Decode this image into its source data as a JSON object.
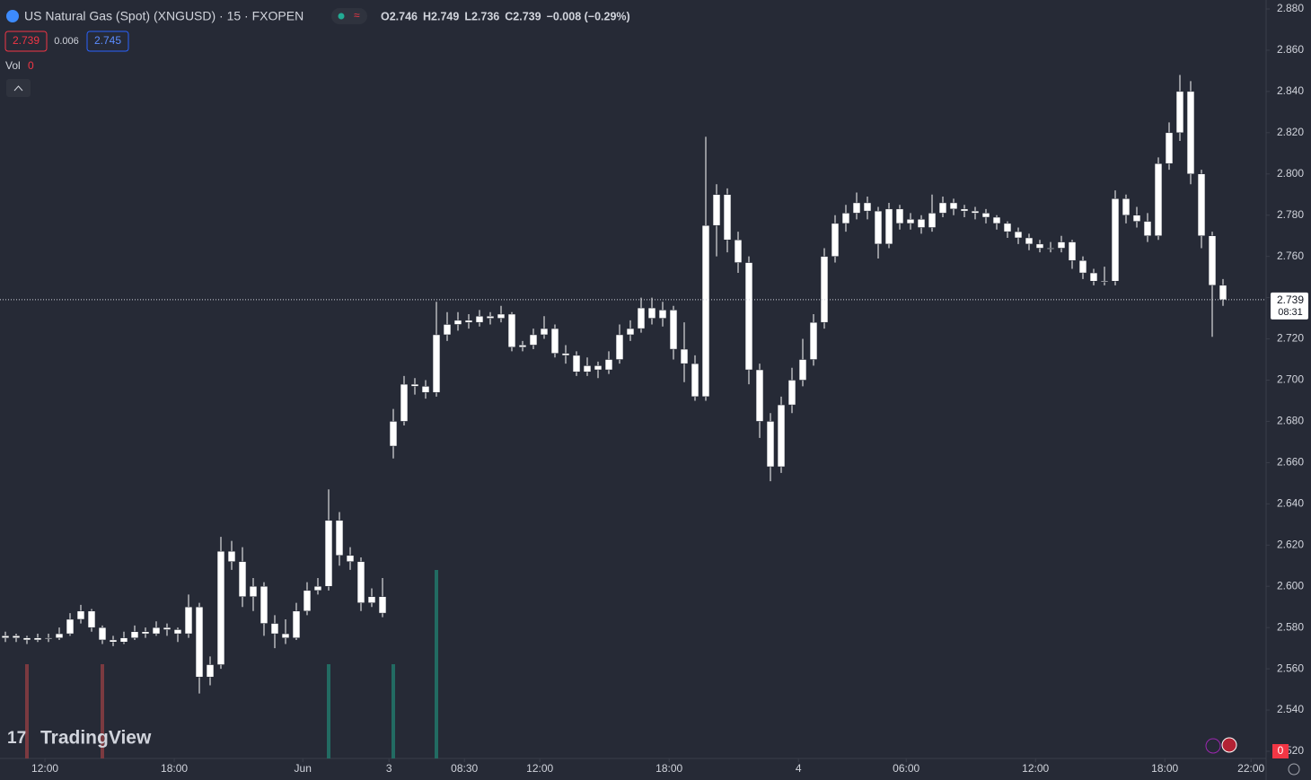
{
  "chart_data": {
    "type": "candlestick",
    "title": "US Natural Gas (Spot) (XNGUSD) · 15 · FXOPEN",
    "header_values": [
      "O2.746",
      "H2.749",
      "L2.736",
      "C2.739",
      "−0.008 (−0.29%)"
    ],
    "sell_price": "2.739",
    "spread": "0.006",
    "buy_price": "2.745",
    "volume_label": "Vol",
    "volume_value": "0",
    "volume_axis_label": "0",
    "brand": "TradingView",
    "last_price_label": "2.739",
    "countdown": "08:31",
    "color": "#ffffff",
    "ohlc": [
      [
        2.575,
        2.578,
        2.573,
        2.576
      ],
      [
        2.576,
        2.577,
        2.573,
        2.575
      ],
      [
        2.575,
        2.576,
        2.572,
        2.574
      ],
      [
        2.574,
        2.577,
        2.573,
        2.575
      ],
      [
        2.575,
        2.577,
        2.573,
        2.575
      ],
      [
        2.575,
        2.58,
        2.574,
        2.577
      ],
      [
        2.577,
        2.587,
        2.576,
        2.584
      ],
      [
        2.584,
        2.591,
        2.582,
        2.588
      ],
      [
        2.588,
        2.589,
        2.578,
        2.58
      ],
      [
        2.58,
        2.581,
        2.572,
        2.574
      ],
      [
        2.574,
        2.576,
        2.571,
        2.573
      ],
      [
        2.573,
        2.578,
        2.572,
        2.575
      ],
      [
        2.575,
        2.581,
        2.574,
        2.578
      ],
      [
        2.578,
        2.58,
        2.575,
        2.577
      ],
      [
        2.577,
        2.583,
        2.576,
        2.58
      ],
      [
        2.58,
        2.582,
        2.576,
        2.579
      ],
      [
        2.579,
        2.58,
        2.573,
        2.577
      ],
      [
        2.577,
        2.596,
        2.575,
        2.59
      ],
      [
        2.59,
        2.592,
        2.548,
        2.556
      ],
      [
        2.556,
        2.566,
        2.552,
        2.562
      ],
      [
        2.562,
        2.624,
        2.56,
        2.617
      ],
      [
        2.617,
        2.622,
        2.608,
        2.612
      ],
      [
        2.612,
        2.619,
        2.59,
        2.595
      ],
      [
        2.595,
        2.604,
        2.588,
        2.6
      ],
      [
        2.6,
        2.602,
        2.576,
        2.582
      ],
      [
        2.582,
        2.586,
        2.57,
        2.577
      ],
      [
        2.577,
        2.584,
        2.572,
        2.575
      ],
      [
        2.575,
        2.592,
        2.574,
        2.588
      ],
      [
        2.588,
        2.602,
        2.586,
        2.598
      ],
      [
        2.598,
        2.604,
        2.596,
        2.6
      ],
      [
        2.6,
        2.647,
        2.598,
        2.632
      ],
      [
        2.632,
        2.636,
        2.61,
        2.615
      ],
      [
        2.615,
        2.619,
        2.608,
        2.612
      ],
      [
        2.612,
        2.614,
        2.588,
        2.592
      ],
      [
        2.592,
        2.599,
        2.59,
        2.595
      ],
      [
        2.595,
        2.604,
        2.585,
        2.587
      ],
      [
        2.668,
        2.686,
        2.662,
        2.68
      ],
      [
        2.68,
        2.702,
        2.678,
        2.698
      ],
      [
        2.698,
        2.701,
        2.693,
        2.697
      ],
      [
        2.697,
        2.7,
        2.691,
        2.694
      ],
      [
        2.694,
        2.738,
        2.692,
        2.722
      ],
      [
        2.722,
        2.733,
        2.719,
        2.727
      ],
      [
        2.727,
        2.733,
        2.724,
        2.729
      ],
      [
        2.729,
        2.732,
        2.725,
        2.728
      ],
      [
        2.728,
        2.734,
        2.726,
        2.731
      ],
      [
        2.731,
        2.733,
        2.727,
        2.73
      ],
      [
        2.73,
        2.736,
        2.728,
        2.732
      ],
      [
        2.732,
        2.733,
        2.714,
        2.716
      ],
      [
        2.716,
        2.719,
        2.714,
        2.717
      ],
      [
        2.717,
        2.725,
        2.715,
        2.722
      ],
      [
        2.722,
        2.731,
        2.72,
        2.725
      ],
      [
        2.725,
        2.727,
        2.711,
        2.713
      ],
      [
        2.713,
        2.717,
        2.708,
        2.712
      ],
      [
        2.712,
        2.714,
        2.702,
        2.704
      ],
      [
        2.704,
        2.711,
        2.702,
        2.707
      ],
      [
        2.707,
        2.709,
        2.701,
        2.705
      ],
      [
        2.705,
        2.714,
        2.703,
        2.71
      ],
      [
        2.71,
        2.727,
        2.708,
        2.722
      ],
      [
        2.722,
        2.729,
        2.719,
        2.725
      ],
      [
        2.725,
        2.74,
        2.723,
        2.735
      ],
      [
        2.735,
        2.74,
        2.727,
        2.73
      ],
      [
        2.73,
        2.738,
        2.726,
        2.734
      ],
      [
        2.734,
        2.736,
        2.71,
        2.715
      ],
      [
        2.715,
        2.728,
        2.699,
        2.708
      ],
      [
        2.708,
        2.712,
        2.69,
        2.692
      ],
      [
        2.692,
        2.818,
        2.69,
        2.775
      ],
      [
        2.775,
        2.795,
        2.76,
        2.79
      ],
      [
        2.79,
        2.793,
        2.762,
        2.768
      ],
      [
        2.768,
        2.772,
        2.752,
        2.757
      ],
      [
        2.757,
        2.76,
        2.698,
        2.705
      ],
      [
        2.705,
        2.708,
        2.672,
        2.68
      ],
      [
        2.68,
        2.684,
        2.651,
        2.658
      ],
      [
        2.658,
        2.692,
        2.655,
        2.688
      ],
      [
        2.688,
        2.706,
        2.684,
        2.7
      ],
      [
        2.7,
        2.72,
        2.697,
        2.71
      ],
      [
        2.71,
        2.732,
        2.707,
        2.728
      ],
      [
        2.728,
        2.764,
        2.725,
        2.76
      ],
      [
        2.76,
        2.78,
        2.757,
        2.776
      ],
      [
        2.776,
        2.785,
        2.772,
        2.781
      ],
      [
        2.781,
        2.791,
        2.778,
        2.786
      ],
      [
        2.786,
        2.789,
        2.778,
        2.782
      ],
      [
        2.782,
        2.784,
        2.759,
        2.766
      ],
      [
        2.766,
        2.786,
        2.764,
        2.783
      ],
      [
        2.783,
        2.785,
        2.773,
        2.776
      ],
      [
        2.776,
        2.781,
        2.773,
        2.778
      ],
      [
        2.778,
        2.78,
        2.771,
        2.774
      ],
      [
        2.774,
        2.79,
        2.772,
        2.781
      ],
      [
        2.781,
        2.789,
        2.779,
        2.786
      ],
      [
        2.786,
        2.788,
        2.78,
        2.783
      ],
      [
        2.783,
        2.785,
        2.779,
        2.782
      ],
      [
        2.782,
        2.784,
        2.778,
        2.781
      ],
      [
        2.781,
        2.783,
        2.776,
        2.779
      ],
      [
        2.779,
        2.78,
        2.773,
        2.776
      ],
      [
        2.776,
        2.777,
        2.769,
        2.772
      ],
      [
        2.772,
        2.774,
        2.766,
        2.769
      ],
      [
        2.769,
        2.771,
        2.763,
        2.766
      ],
      [
        2.766,
        2.768,
        2.762,
        2.764
      ],
      [
        2.764,
        2.767,
        2.762,
        2.764
      ],
      [
        2.764,
        2.77,
        2.762,
        2.767
      ],
      [
        2.767,
        2.768,
        2.754,
        2.758
      ],
      [
        2.758,
        2.76,
        2.749,
        2.752
      ],
      [
        2.752,
        2.754,
        2.746,
        2.748
      ],
      [
        2.748,
        2.755,
        2.746,
        2.748
      ],
      [
        2.748,
        2.792,
        2.746,
        2.788
      ],
      [
        2.788,
        2.79,
        2.776,
        2.78
      ],
      [
        2.78,
        2.784,
        2.774,
        2.777
      ],
      [
        2.777,
        2.781,
        2.767,
        2.77
      ],
      [
        2.77,
        2.808,
        2.768,
        2.805
      ],
      [
        2.805,
        2.825,
        2.802,
        2.82
      ],
      [
        2.82,
        2.848,
        2.816,
        2.84
      ],
      [
        2.84,
        2.845,
        2.795,
        2.8
      ],
      [
        2.8,
        2.802,
        2.764,
        2.77
      ],
      [
        2.77,
        2.772,
        2.721,
        2.746
      ],
      [
        2.746,
        2.749,
        2.736,
        2.739
      ]
    ],
    "volume": {
      "x": [
        2,
        9,
        30,
        36,
        40
      ],
      "values": [
        1,
        1,
        1,
        1,
        2
      ],
      "colors": [
        "#7b3a40",
        "#7b3a40",
        "#226b62",
        "#226b62",
        "#226b62"
      ]
    },
    "xlim": [
      -0.5,
      117
    ],
    "xticks": [
      {
        "value": 3.67,
        "label": "12:00"
      },
      {
        "value": 15.67,
        "label": "18:00"
      },
      {
        "value": 27.6,
        "label": "Jun"
      },
      {
        "value": 35.6,
        "label": "3"
      },
      {
        "value": 42.6,
        "label": "08:30"
      },
      {
        "value": 49.6,
        "label": "12:00"
      },
      {
        "value": 61.6,
        "label": "18:00"
      },
      {
        "value": 73.6,
        "label": "4"
      },
      {
        "value": 83.6,
        "label": "06:00"
      },
      {
        "value": 95.6,
        "label": "12:00"
      },
      {
        "value": 107.6,
        "label": "18:00"
      },
      {
        "value": 115.6,
        "label": "22:00"
      }
    ],
    "ylim": [
      2.52,
      2.88
    ],
    "yticks": [
      {
        "value": 2.52,
        "label": "2.520"
      },
      {
        "value": 2.54,
        "label": "2.540"
      },
      {
        "value": 2.56,
        "label": "2.560"
      },
      {
        "value": 2.58,
        "label": "2.580"
      },
      {
        "value": 2.6,
        "label": "2.600"
      },
      {
        "value": 2.62,
        "label": "2.620"
      },
      {
        "value": 2.64,
        "label": "2.640"
      },
      {
        "value": 2.66,
        "label": "2.660"
      },
      {
        "value": 2.68,
        "label": "2.680"
      },
      {
        "value": 2.7,
        "label": "2.700"
      },
      {
        "value": 2.72,
        "label": "2.720"
      },
      {
        "value": 2.74,
        "label": "2.740"
      },
      {
        "value": 2.76,
        "label": "2.760"
      },
      {
        "value": 2.78,
        "label": "2.780"
      },
      {
        "value": 2.8,
        "label": "2.800"
      },
      {
        "value": 2.82,
        "label": "2.820"
      },
      {
        "value": 2.84,
        "label": "2.840"
      },
      {
        "value": 2.86,
        "label": "2.860"
      },
      {
        "value": 2.88,
        "label": "2.880"
      }
    ]
  }
}
